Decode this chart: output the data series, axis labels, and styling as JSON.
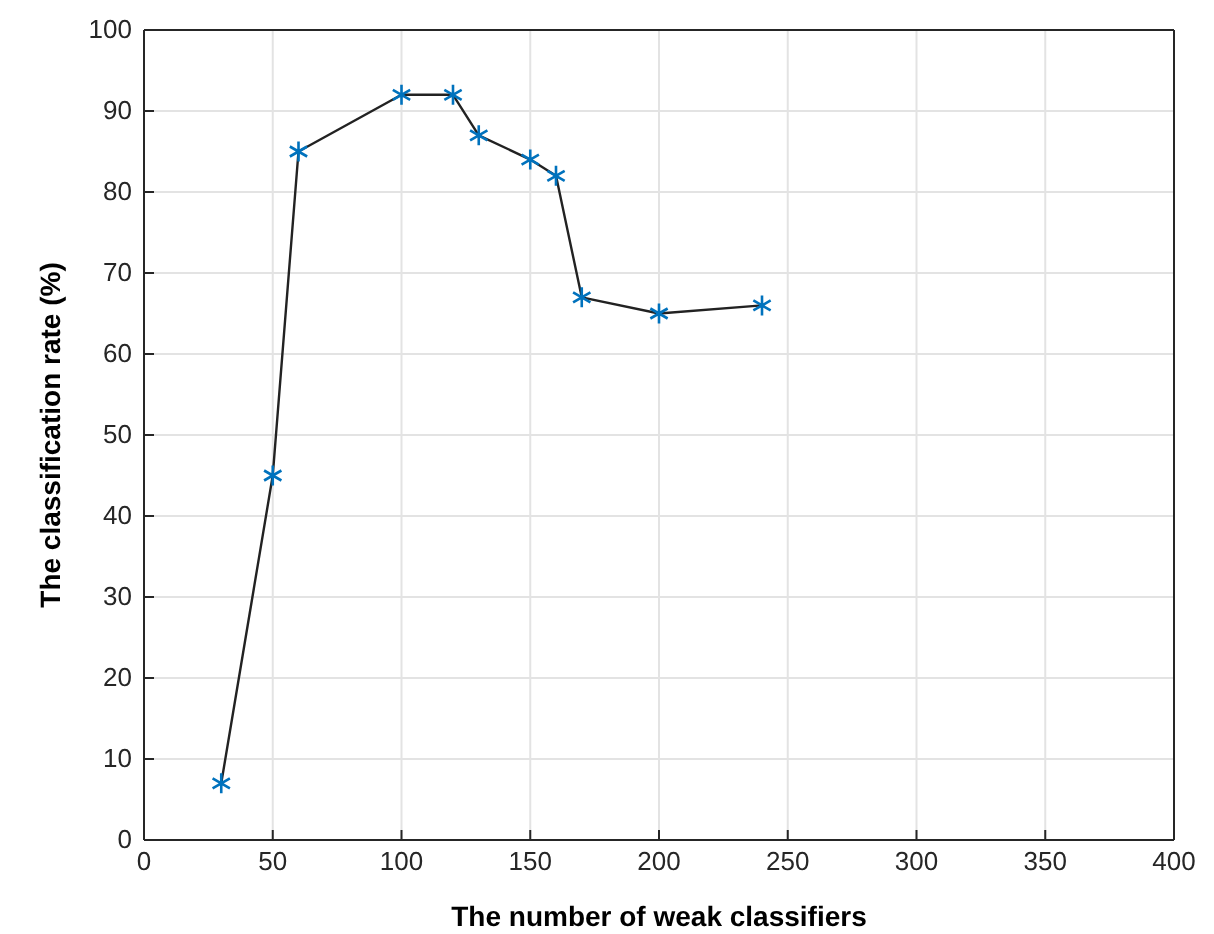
{
  "chart_data": {
    "type": "line",
    "xlabel": "The number of weak classifiers",
    "ylabel": "The classification rate (%)",
    "x": [
      30,
      50,
      60,
      100,
      120,
      130,
      150,
      160,
      170,
      200,
      240
    ],
    "series": [
      {
        "color": "#0072bd",
        "values": [
          7,
          45,
          85,
          92,
          92,
          87,
          84,
          82,
          67,
          65,
          66
        ]
      }
    ],
    "xlim": [
      0,
      400
    ],
    "xticks": [
      0,
      50,
      100,
      150,
      200,
      250,
      300,
      350,
      400
    ],
    "ylim": [
      0,
      100
    ],
    "yticks": [
      0,
      10,
      20,
      30,
      40,
      50,
      60,
      70,
      80,
      90,
      100
    ],
    "grid": true,
    "marker": "cross",
    "line_style": "solid"
  }
}
